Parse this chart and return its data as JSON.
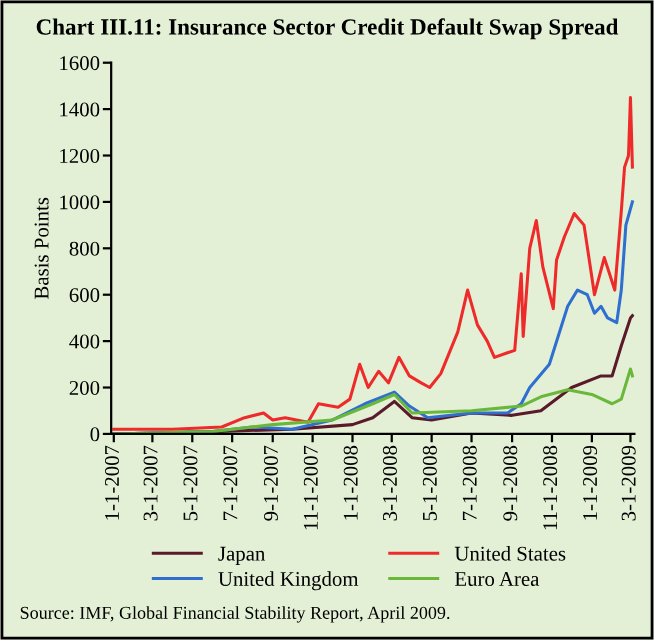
{
  "chart_data": {
    "type": "line",
    "title": "Chart III.11: Insurance Sector Credit Default Swap Spread",
    "ylabel": "Basis Points",
    "ylim": [
      0,
      1600
    ],
    "yticks": [
      0,
      200,
      400,
      600,
      800,
      1000,
      1200,
      1400,
      1600
    ],
    "xlim": [
      "2006-12-28",
      "2009-03-07"
    ],
    "xticks": [
      {
        "value": "2007-01-01",
        "label": "1-1-2007"
      },
      {
        "value": "2007-03-01",
        "label": "3-1-2007"
      },
      {
        "value": "2007-05-01",
        "label": "5-1-2007"
      },
      {
        "value": "2007-07-01",
        "label": "7-1-2007"
      },
      {
        "value": "2007-09-01",
        "label": "9-1-2007"
      },
      {
        "value": "2007-11-01",
        "label": "11-1-2007"
      },
      {
        "value": "2008-01-01",
        "label": "1-1-2008"
      },
      {
        "value": "2008-03-01",
        "label": "3-1-2008"
      },
      {
        "value": "2008-05-01",
        "label": "5-1-2008"
      },
      {
        "value": "2008-07-01",
        "label": "7-1-2008"
      },
      {
        "value": "2008-09-01",
        "label": "9-1-2008"
      },
      {
        "value": "2008-11-01",
        "label": "11-1-2008"
      },
      {
        "value": "2009-01-01",
        "label": "1-1-2009"
      },
      {
        "value": "2009-03-01",
        "label": "3-1-2009"
      }
    ],
    "grid": false,
    "legend": "bottom",
    "marker": "none",
    "line_style": "solid",
    "annotations": [
      "Source: IMF, Global Financial Stability Report, April 2009."
    ],
    "series": [
      {
        "name": "Japan",
        "color": "#5a1a2a",
        "x": [
          "2007-01-01",
          "2007-06-01",
          "2007-10-01",
          "2008-01-01",
          "2008-02-01",
          "2008-03-05",
          "2008-04-01",
          "2008-05-01",
          "2008-07-01",
          "2008-09-01",
          "2008-10-15",
          "2008-12-01",
          "2009-01-15",
          "2009-02-01",
          "2009-02-15",
          "2009-03-01",
          "2009-03-04"
        ],
        "values": [
          0,
          10,
          20,
          40,
          70,
          140,
          70,
          60,
          90,
          80,
          100,
          200,
          250,
          250,
          380,
          500,
          510
        ]
      },
      {
        "name": "United Kingdom",
        "color": "#2f6fd0",
        "x": [
          "2007-01-01",
          "2007-06-01",
          "2007-08-01",
          "2007-10-01",
          "2007-12-01",
          "2008-01-20",
          "2008-03-05",
          "2008-03-28",
          "2008-04-25",
          "2008-07-01",
          "2008-08-25",
          "2008-09-15",
          "2008-09-28",
          "2008-10-28",
          "2008-11-25",
          "2008-12-10",
          "2008-12-25",
          "2009-01-05",
          "2009-01-15",
          "2009-01-25",
          "2009-02-08",
          "2009-02-15",
          "2009-02-22",
          "2009-03-04"
        ],
        "values": [
          0,
          10,
          30,
          20,
          60,
          130,
          180,
          120,
          70,
          90,
          90,
          130,
          200,
          300,
          550,
          620,
          600,
          520,
          550,
          500,
          480,
          620,
          900,
          1000
        ]
      },
      {
        "name": "United States",
        "color": "#ee2a2a",
        "x": [
          "2007-01-01",
          "2007-04-01",
          "2007-06-15",
          "2007-07-20",
          "2007-08-18",
          "2007-09-01",
          "2007-09-20",
          "2007-10-25",
          "2007-11-10",
          "2007-12-10",
          "2007-12-28",
          "2008-01-12",
          "2008-01-25",
          "2008-02-10",
          "2008-02-25",
          "2008-03-12",
          "2008-03-28",
          "2008-04-15",
          "2008-04-28",
          "2008-05-15",
          "2008-06-10",
          "2008-06-25",
          "2008-07-10",
          "2008-07-25",
          "2008-08-05",
          "2008-08-25",
          "2008-09-05",
          "2008-09-15",
          "2008-09-18",
          "2008-09-28",
          "2008-10-08",
          "2008-10-18",
          "2008-11-03",
          "2008-11-08",
          "2008-11-20",
          "2008-12-05",
          "2008-12-20",
          "2009-01-05",
          "2009-01-20",
          "2009-02-05",
          "2009-02-15",
          "2009-02-20",
          "2009-02-26",
          "2009-03-01",
          "2009-03-04"
        ],
        "values": [
          20,
          20,
          30,
          70,
          90,
          60,
          70,
          50,
          130,
          115,
          150,
          300,
          200,
          270,
          220,
          330,
          250,
          220,
          200,
          260,
          440,
          620,
          470,
          400,
          330,
          350,
          360,
          690,
          420,
          800,
          920,
          720,
          540,
          750,
          850,
          950,
          900,
          600,
          760,
          620,
          960,
          1150,
          1200,
          1450,
          1150
        ]
      },
      {
        "name": "Euro Area",
        "color": "#6ab83a",
        "x": [
          "2007-01-01",
          "2007-06-01",
          "2007-09-01",
          "2007-12-01",
          "2008-02-01",
          "2008-03-05",
          "2008-04-01",
          "2008-07-01",
          "2008-09-15",
          "2008-10-15",
          "2008-11-25",
          "2009-01-01",
          "2009-02-01",
          "2009-02-15",
          "2009-03-01",
          "2009-03-04"
        ],
        "values": [
          0,
          10,
          40,
          60,
          130,
          170,
          90,
          100,
          120,
          160,
          190,
          170,
          130,
          150,
          280,
          250
        ]
      }
    ]
  }
}
